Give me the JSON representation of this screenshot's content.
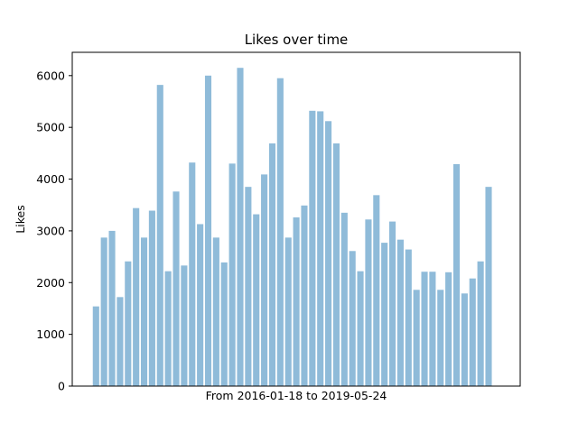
{
  "chart_data": {
    "type": "bar",
    "title": "Likes over time",
    "xlabel": "From 2016-01-18 to 2019-05-24",
    "ylabel": "Likes",
    "ylim": [
      0,
      6450
    ],
    "yticks": [
      "0",
      "1000",
      "2000",
      "3000",
      "4000",
      "5000",
      "6000"
    ],
    "grid": false,
    "bar_color": "#8fbbd9",
    "values": [
      1540,
      2870,
      3000,
      1720,
      2410,
      3440,
      2870,
      3390,
      5820,
      2220,
      3760,
      2330,
      4320,
      3130,
      6000,
      2870,
      2390,
      4300,
      6150,
      3850,
      3320,
      4090,
      4690,
      5950,
      2870,
      3260,
      3490,
      5320,
      5310,
      5120,
      4690,
      3350,
      2610,
      2220,
      3220,
      3690,
      2770,
      3180,
      2830,
      2640,
      1860,
      2210,
      2210,
      1860,
      2200,
      4290,
      1790,
      2080,
      2410,
      3850
    ]
  }
}
